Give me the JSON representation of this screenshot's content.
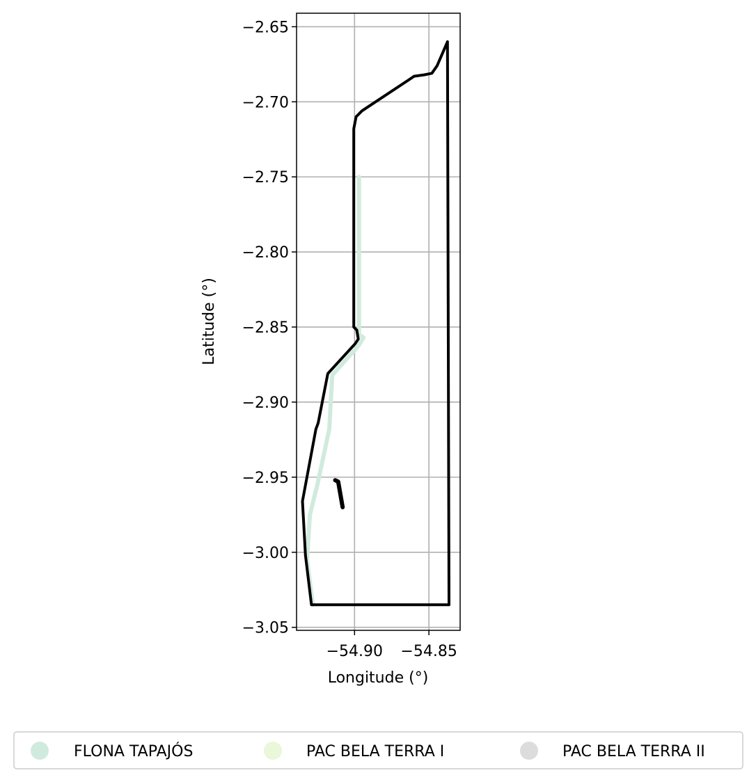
{
  "chart_data": {
    "type": "map",
    "xlabel": "Longitude (°)",
    "ylabel": "Latitude (°)",
    "xlim": [
      -54.939,
      -54.829
    ],
    "ylim": [
      -3.052,
      -2.641
    ],
    "xticks": [
      -54.9,
      -54.85
    ],
    "xtick_labels": [
      "−54.90",
      "−54.85"
    ],
    "yticks": [
      -2.65,
      -2.7,
      -2.75,
      -2.8,
      -2.85,
      -2.9,
      -2.95,
      -3.0,
      -3.05
    ],
    "ytick_labels": [
      "−2.65",
      "−2.70",
      "−2.75",
      "−2.80",
      "−2.85",
      "−2.90",
      "−2.95",
      "−3.00",
      "−3.05"
    ],
    "grid": true,
    "legend_position": "bottom",
    "legend": [
      {
        "label": "FLONA TAPAJÓS",
        "color": "#d0ebde"
      },
      {
        "label": "PAC BELA TERRA I",
        "color": "#eaf7d8"
      },
      {
        "label": "PAC BELA TERRA II",
        "color": "#dcdcdc"
      }
    ],
    "layers": [
      {
        "name": "FLONA TAPAJÓS",
        "color": "#d0ebde",
        "coords": [
          [
            -54.897,
            -2.75
          ],
          [
            -54.897,
            -2.855
          ],
          [
            -54.894,
            -2.857
          ],
          [
            -54.897,
            -2.862
          ],
          [
            -54.915,
            -2.882
          ],
          [
            -54.917,
            -2.918
          ],
          [
            -54.925,
            -2.955
          ],
          [
            -54.93,
            -2.975
          ],
          [
            -54.932,
            -3.005
          ],
          [
            -54.928,
            -3.035
          ]
        ]
      },
      {
        "name": "PAC BELA TERRA I",
        "color": "#000000",
        "coords": [
          [
            -54.8375,
            -2.66
          ],
          [
            -54.8445,
            -2.676
          ],
          [
            -54.848,
            -2.681
          ],
          [
            -54.853,
            -2.682
          ],
          [
            -54.86,
            -2.683
          ],
          [
            -54.863,
            -2.685
          ],
          [
            -54.895,
            -2.706
          ],
          [
            -54.899,
            -2.71
          ],
          [
            -54.9005,
            -2.718
          ],
          [
            -54.9005,
            -2.85
          ],
          [
            -54.8985,
            -2.852
          ],
          [
            -54.8975,
            -2.858
          ],
          [
            -54.8995,
            -2.861
          ],
          [
            -54.918,
            -2.881
          ],
          [
            -54.9245,
            -2.914
          ],
          [
            -54.926,
            -2.918
          ],
          [
            -54.935,
            -2.966
          ],
          [
            -54.933,
            -3.002
          ],
          [
            -54.929,
            -3.035
          ],
          [
            -54.8365,
            -3.035
          ],
          [
            -54.8375,
            -2.66
          ]
        ]
      },
      {
        "name": "PAC BELA TERRA II",
        "color": "#000000",
        "coords": [
          [
            -54.913,
            -2.952
          ],
          [
            -54.911,
            -2.953
          ],
          [
            -54.908,
            -2.97
          ]
        ]
      }
    ]
  }
}
